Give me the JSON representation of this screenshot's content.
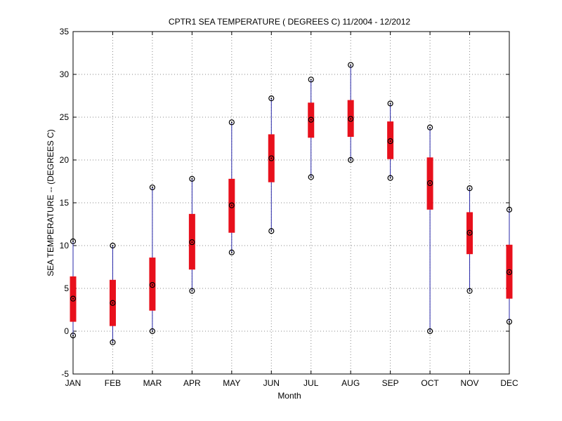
{
  "chart_data": {
    "type": "box",
    "title": "CPTR1  SEA TEMPERATURE ( DEGREES C) 11/2004 - 12/2012",
    "xlabel": "Month",
    "ylabel": "SEA TEMPERATURE -- (DEGREES C)",
    "ylim": [
      -5,
      35
    ],
    "yticks": [
      -5,
      0,
      5,
      10,
      15,
      20,
      25,
      30,
      35
    ],
    "grid": true,
    "categories": [
      "JAN",
      "FEB",
      "MAR",
      "APR",
      "MAY",
      "JUN",
      "JUL",
      "AUG",
      "SEP",
      "OCT",
      "NOV",
      "DEC"
    ],
    "series": [
      {
        "min": [
          -0.5,
          -1.3,
          0.0,
          4.7,
          9.2,
          11.7,
          18.0,
          20.0,
          17.9,
          0.0,
          4.7,
          1.1
        ],
        "q1": [
          1.1,
          0.6,
          2.4,
          7.2,
          11.5,
          17.4,
          22.6,
          22.7,
          20.1,
          14.2,
          9.0,
          3.8
        ],
        "median": [
          3.8,
          3.3,
          5.4,
          10.4,
          14.7,
          20.2,
          24.7,
          24.8,
          22.2,
          17.3,
          11.5,
          6.9
        ],
        "q3": [
          6.4,
          6.0,
          8.6,
          13.7,
          17.8,
          23.0,
          26.7,
          27.0,
          24.5,
          20.3,
          13.9,
          10.1
        ],
        "max": [
          10.5,
          10.0,
          16.8,
          17.8,
          24.4,
          27.2,
          29.4,
          31.1,
          26.6,
          23.8,
          16.7,
          14.2
        ]
      }
    ],
    "colors": {
      "box": "#e8101c",
      "whisker": "#2727a8",
      "marker": "#000000",
      "grid": "#888888",
      "axis": "#000000"
    }
  }
}
